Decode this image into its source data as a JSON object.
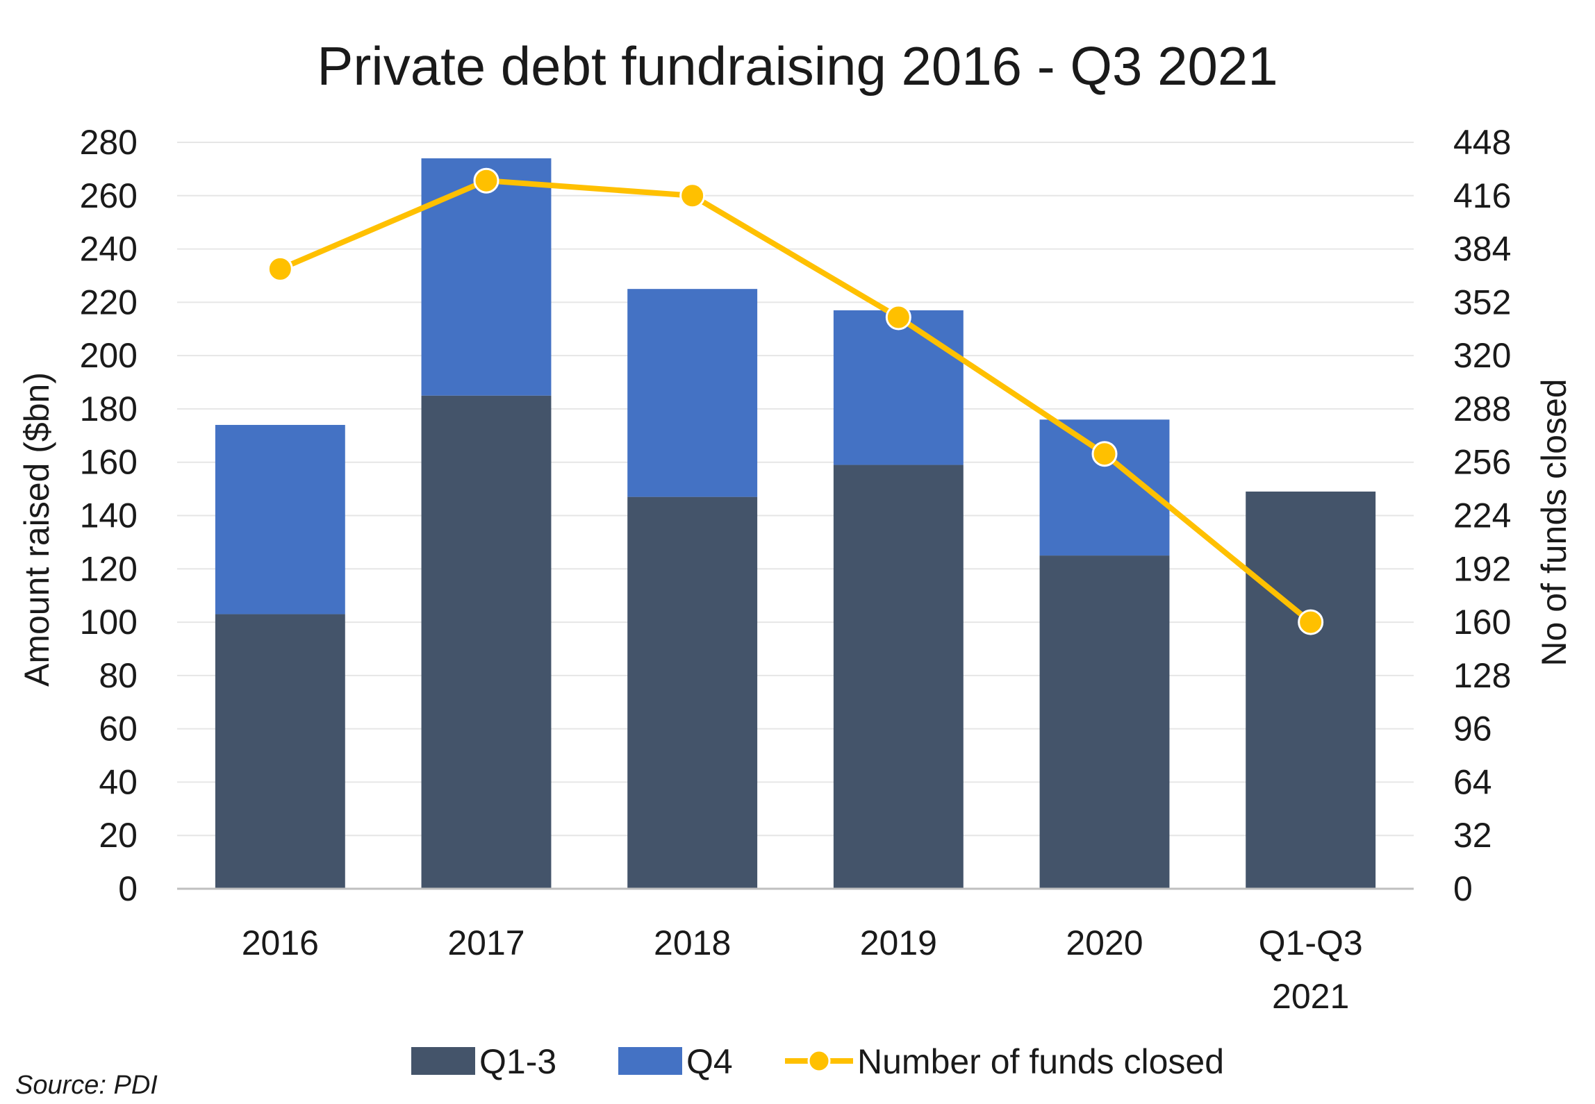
{
  "chart_data": {
    "type": "bar",
    "stacked": true,
    "title": "Private debt fundraising 2016 - Q3 2021",
    "categories": [
      [
        "2016"
      ],
      [
        "2017"
      ],
      [
        "2018"
      ],
      [
        "2019"
      ],
      [
        "2020"
      ],
      [
        "Q1-Q3",
        "2021"
      ]
    ],
    "series": [
      {
        "name": "Q1-3",
        "type": "bar",
        "axis": "left",
        "color": "#44546a",
        "values": [
          103,
          185,
          147,
          159,
          125,
          149
        ]
      },
      {
        "name": "Q4",
        "type": "bar",
        "axis": "left",
        "color": "#4472c4",
        "values": [
          71,
          89,
          78,
          58,
          51,
          0
        ]
      },
      {
        "name": "Number of funds closed",
        "type": "line",
        "axis": "right",
        "color": "#ffc000",
        "values": [
          372,
          425,
          416,
          343,
          261,
          160
        ]
      }
    ],
    "y_left": {
      "label": "Amount raised ($bn)",
      "min": 0,
      "max": 280,
      "step": 20,
      "ticks": [
        "0",
        "20",
        "40",
        "60",
        "80",
        "100",
        "120",
        "140",
        "160",
        "180",
        "200",
        "220",
        "240",
        "260",
        "280"
      ]
    },
    "y_right": {
      "label": "No of funds closed",
      "min": 0,
      "max": 448,
      "step": 32,
      "ticks": [
        "0",
        "32",
        "64",
        "96",
        "128",
        "160",
        "192",
        "224",
        "256",
        "288",
        "320",
        "352",
        "384",
        "416",
        "448"
      ]
    },
    "grid": true,
    "legend_position": "bottom"
  },
  "source": "Source: PDI",
  "colors": {
    "gridline": "#e6e6e6",
    "axis": "#bfbfbf"
  }
}
